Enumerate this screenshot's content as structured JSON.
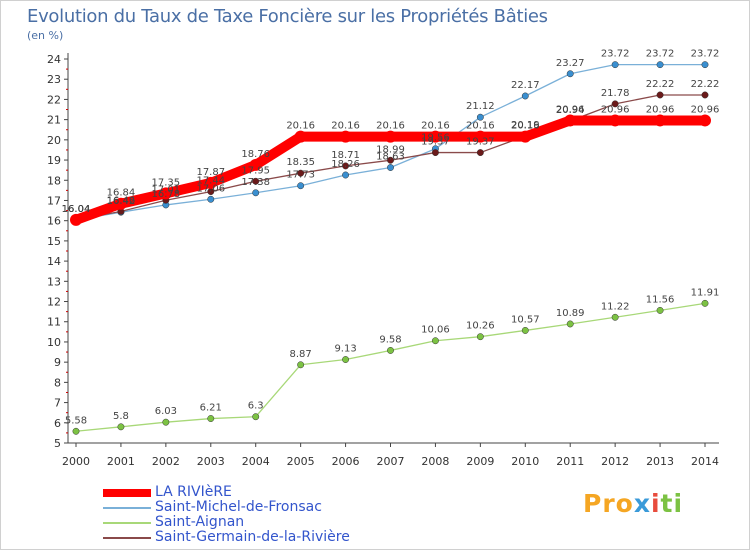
{
  "title": "Evolution du Taux de Taxe Foncière sur les Propriétés Bâties",
  "unit": "(en %)",
  "logo": {
    "part1": "Pro",
    "part2": "x",
    "part3": "i",
    "part4": "ti"
  },
  "chart_data": {
    "type": "line",
    "x": [
      "2000",
      "2001",
      "2002",
      "2003",
      "2004",
      "2005",
      "2006",
      "2007",
      "2008",
      "2009",
      "2010",
      "2011",
      "2012",
      "2013",
      "2014"
    ],
    "ylim": [
      5,
      24
    ],
    "yticks": [
      5,
      6,
      7,
      8,
      9,
      10,
      11,
      12,
      13,
      14,
      15,
      16,
      17,
      18,
      19,
      20,
      21,
      22,
      23,
      24
    ],
    "grid": false,
    "legend_position": "bottom-left",
    "series": [
      {
        "name": "LA RIVIèRE",
        "color": "#ff0000",
        "width": 10,
        "values": [
          16.04,
          16.84,
          17.35,
          17.87,
          18.76,
          20.16,
          20.16,
          20.16,
          20.16,
          20.16,
          20.16,
          20.96,
          20.96,
          20.96,
          20.96
        ],
        "labels": [
          "16.04",
          "16.84",
          "17.35",
          "17.87",
          "18.76",
          "20.16",
          "20.16",
          "20.16",
          "20.16",
          "20.16",
          "20.16",
          "20.96",
          "20.96",
          "20.96",
          "20.96"
        ]
      },
      {
        "name": "Saint-Michel-de-Fronsac",
        "color": "#7ab0d8",
        "width": 1.3,
        "marker": "#3a8fd0",
        "values": [
          16.04,
          16.42,
          16.78,
          17.06,
          17.38,
          17.73,
          18.26,
          18.63,
          19.56,
          21.12,
          22.17,
          23.27,
          23.72,
          23.72,
          23.72
        ],
        "labels": [
          "16.04",
          "16.42",
          "16.78",
          "17.06",
          "17.38",
          "17.73",
          "18.26",
          "18.63",
          "19.56",
          "21.12",
          "22.17",
          "23.27",
          "23.72",
          "23.72",
          "23.72"
        ]
      },
      {
        "name": "Saint-Aignan",
        "color": "#a8d878",
        "width": 1.3,
        "marker": "#7cc243",
        "values": [
          5.58,
          5.8,
          6.03,
          6.21,
          6.3,
          8.87,
          9.13,
          9.58,
          10.06,
          10.26,
          10.57,
          10.89,
          11.22,
          11.56,
          11.91
        ],
        "labels": [
          "5.58",
          "5.8",
          "6.03",
          "6.21",
          "6.3",
          "8.87",
          "9.13",
          "9.58",
          "10.06",
          "10.26",
          "10.57",
          "10.89",
          "11.22",
          "11.56",
          "11.91"
        ]
      },
      {
        "name": "Saint-Germain-de-la-Rivière",
        "color": "#8a4a4a",
        "width": 1.3,
        "marker": "#6b1a1a",
        "values": [
          16.04,
          16.46,
          17.01,
          17.44,
          17.95,
          18.35,
          18.71,
          18.99,
          19.37,
          19.37,
          20.19,
          20.94,
          21.78,
          22.22,
          22.22
        ],
        "labels": [
          "16.04",
          "16.46",
          "17.01",
          "17.44",
          "17.95",
          "18.35",
          "18.71",
          "18.99",
          "19.37",
          "19.37",
          "20.19",
          "20.94",
          "21.78",
          "22.22",
          "22.22"
        ]
      }
    ]
  }
}
